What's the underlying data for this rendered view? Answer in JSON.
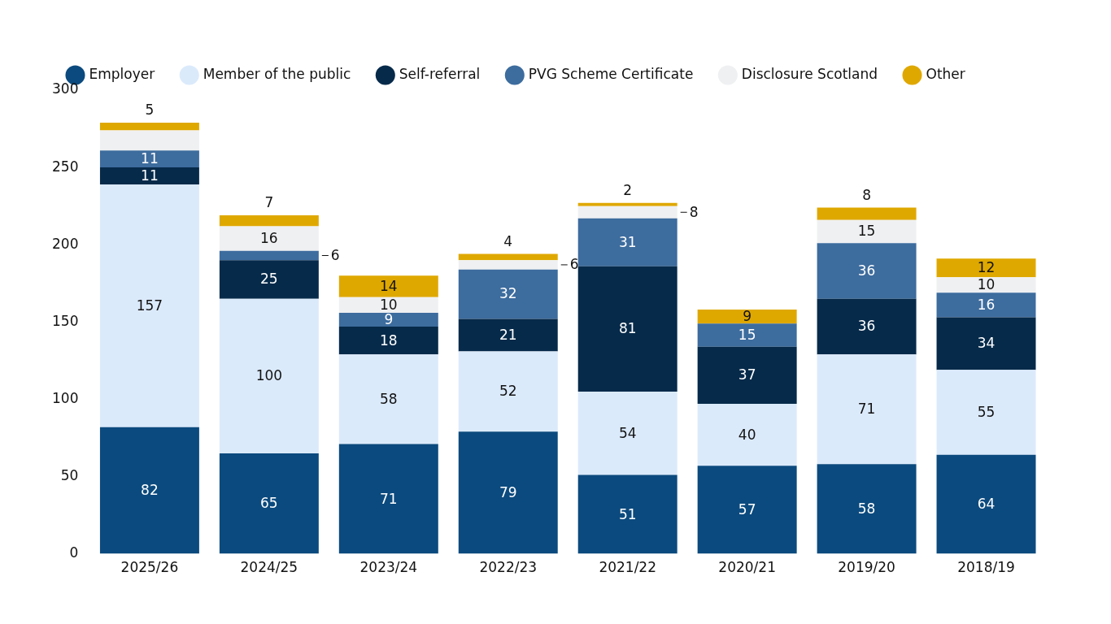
{
  "chart_data": {
    "type": "bar",
    "stacked": true,
    "categories": [
      "2025/26",
      "2024/25",
      "2023/24",
      "2022/23",
      "2021/22",
      "2020/21",
      "2019/20",
      "2018/19"
    ],
    "series": [
      {
        "name": "Employer",
        "color": "#0b4a7e",
        "values": [
          82,
          65,
          71,
          79,
          51,
          57,
          58,
          64
        ],
        "value_labels": [
          "82",
          "65",
          "71",
          "79",
          "51",
          "57",
          "58",
          "64"
        ]
      },
      {
        "name": "Member of the public",
        "color": "#dbeafb",
        "values": [
          157,
          100,
          58,
          52,
          54,
          40,
          71,
          55
        ],
        "value_labels": [
          "157",
          "100",
          "58",
          "52",
          "54",
          "40",
          "71",
          "55"
        ]
      },
      {
        "name": "Self-referral",
        "color": "#062a4a",
        "values": [
          11,
          25,
          18,
          21,
          81,
          37,
          36,
          34
        ],
        "value_labels": [
          "11",
          "25",
          "18",
          "21",
          "81",
          "37",
          "36",
          "34"
        ]
      },
      {
        "name": "PVG Scheme Certificate",
        "color": "#3d6c9e",
        "values": [
          11,
          6,
          9,
          32,
          31,
          15,
          36,
          16
        ],
        "value_labels": [
          "11",
          "6",
          "9",
          "32",
          "31",
          "15",
          "36",
          "16"
        ]
      },
      {
        "name": "Disclosure Scotland",
        "color": "#eff0f2",
        "values": [
          13,
          16,
          10,
          6,
          8,
          0,
          15,
          10
        ],
        "value_labels": [
          null,
          "16",
          "10",
          "6",
          "8",
          null,
          "15",
          "10"
        ]
      },
      {
        "name": "Other",
        "color": "#dfa800",
        "values": [
          5,
          7,
          14,
          4,
          2,
          9,
          8,
          12
        ],
        "value_labels": [
          "5",
          "7",
          "14",
          "4",
          "2",
          "9",
          "8",
          "12"
        ]
      }
    ],
    "ylim": [
      0,
      300
    ],
    "yticks": [
      0,
      50,
      100,
      150,
      200,
      250,
      300
    ],
    "grid": false,
    "legend": "top left"
  }
}
